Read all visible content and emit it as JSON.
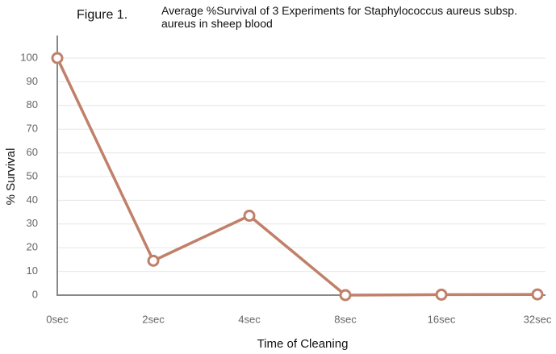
{
  "chart_data": {
    "type": "line",
    "figure_label": "Figure 1.",
    "title": "Average %Survival of 3 Experiments for Staphylococcus aureus subsp. aureus in sheep blood",
    "x_label": "Time of Cleaning",
    "y_label": "% Survival",
    "categories": [
      "0sec",
      "2sec",
      "4sec",
      "8sec",
      "16sec",
      "32sec"
    ],
    "series": [
      {
        "name": "% Survival",
        "color": "#c0806a",
        "values": [
          100,
          14.5,
          33.5,
          0,
          0.2,
          0.3
        ]
      }
    ],
    "ylim": [
      0,
      100
    ],
    "yticks": [
      0,
      10,
      20,
      30,
      40,
      50,
      60,
      70,
      80,
      90,
      100
    ],
    "grid": true
  }
}
